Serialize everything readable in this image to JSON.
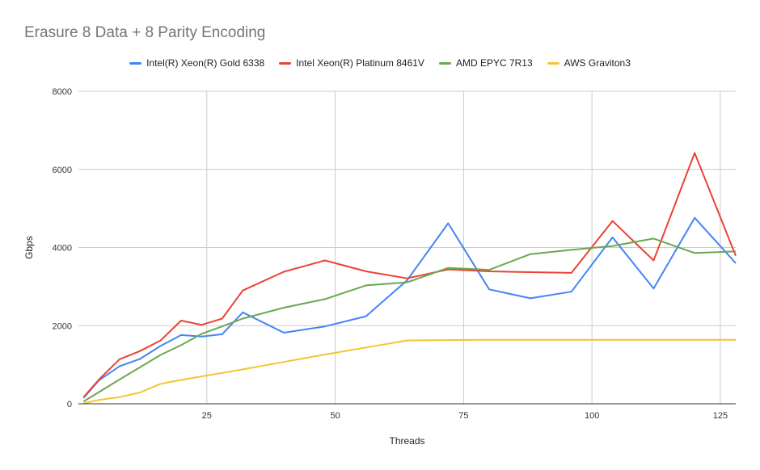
{
  "chart_data": {
    "type": "line",
    "title": "Erasure 8 Data + 8 Parity Encoding",
    "xlabel": "Threads",
    "ylabel": "Gbps",
    "xlim": [
      0,
      128
    ],
    "ylim": [
      0,
      8000
    ],
    "xticks": [
      25,
      50,
      75,
      100,
      125
    ],
    "yticks": [
      0,
      2000,
      4000,
      6000,
      8000
    ],
    "grid": true,
    "legend_position": "top",
    "series": [
      {
        "name": "Intel(R) Xeon(R) Gold 6338",
        "color": "#4285f4",
        "x": [
          1,
          4,
          8,
          12,
          16,
          20,
          24,
          28,
          32,
          40,
          48,
          56,
          64,
          72,
          80,
          88,
          96,
          104,
          112,
          120,
          128
        ],
        "y": [
          150,
          600,
          960,
          1150,
          1480,
          1760,
          1720,
          1780,
          2340,
          1820,
          1980,
          2240,
          3160,
          4620,
          2930,
          2700,
          2870,
          4260,
          2950,
          4760,
          3600
        ]
      },
      {
        "name": "Intel Xeon(R) Platinum 8461V",
        "color": "#ea4335",
        "x": [
          1,
          4,
          8,
          12,
          16,
          20,
          24,
          28,
          32,
          40,
          48,
          56,
          64,
          72,
          80,
          88,
          96,
          104,
          112,
          120,
          128
        ],
        "y": [
          170,
          620,
          1140,
          1350,
          1620,
          2130,
          2020,
          2180,
          2900,
          3380,
          3670,
          3390,
          3210,
          3440,
          3390,
          3370,
          3350,
          4680,
          3670,
          6420,
          3790
        ]
      },
      {
        "name": "AMD EPYC 7R13",
        "color": "#6aa84f",
        "x": [
          1,
          8,
          16,
          20,
          24,
          28,
          32,
          40,
          48,
          56,
          64,
          72,
          80,
          88,
          96,
          104,
          112,
          120,
          128
        ],
        "y": [
          60,
          620,
          1250,
          1500,
          1790,
          1980,
          2180,
          2460,
          2680,
          3030,
          3110,
          3480,
          3430,
          3830,
          3940,
          4040,
          4230,
          3860,
          3900
        ]
      },
      {
        "name": "AWS Graviton3",
        "color": "#f4c430",
        "x": [
          1,
          4,
          8,
          12,
          16,
          20,
          24,
          28,
          32,
          40,
          48,
          56,
          64,
          72,
          80,
          88,
          96,
          104,
          112,
          120,
          128
        ],
        "y": [
          10,
          100,
          170,
          290,
          510,
          610,
          700,
          790,
          880,
          1070,
          1260,
          1440,
          1620,
          1630,
          1640,
          1640,
          1640,
          1640,
          1640,
          1640,
          1640
        ]
      }
    ]
  }
}
